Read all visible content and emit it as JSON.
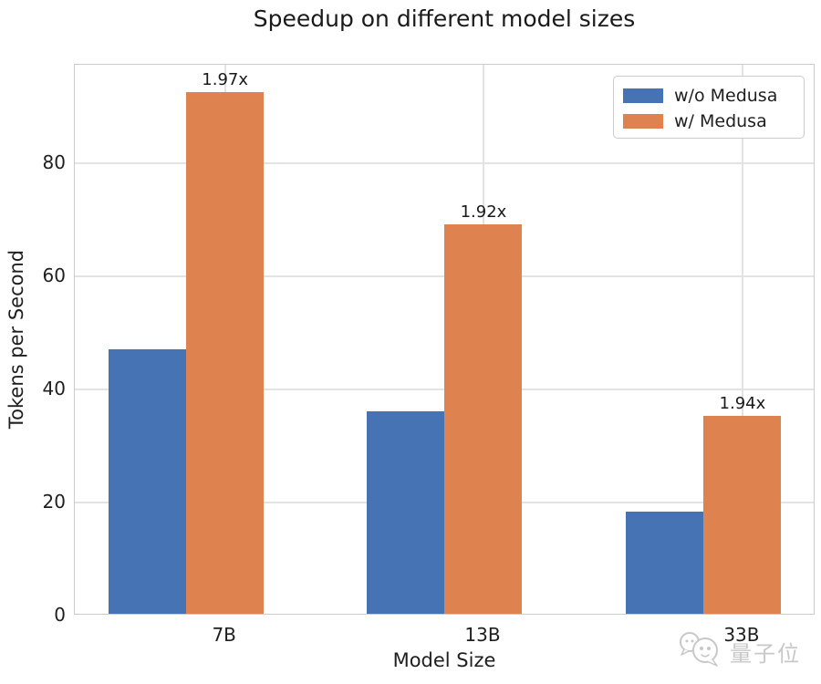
{
  "title": "Speedup on different model sizes",
  "colors": {
    "series_blue": "#4673B4",
    "series_orange": "#DE8350",
    "grid": "#E3E3E3",
    "spine": "#CCCCCC",
    "text": "#1F1F1F",
    "watermark": "#C6C6C6"
  },
  "chart_data": {
    "type": "bar",
    "title": "Speedup on different model sizes",
    "xlabel": "Model Size",
    "ylabel": "Tokens per Second",
    "categories": [
      "7B",
      "13B",
      "33B"
    ],
    "series": [
      {
        "name": "w/o Medusa",
        "color": "#4673B4",
        "values": [
          46.8,
          35.8,
          18.0
        ]
      },
      {
        "name": "w/ Medusa",
        "color": "#DE8350",
        "values": [
          92.2,
          68.8,
          35.0
        ]
      }
    ],
    "speedup_labels": [
      "1.97x",
      "1.92x",
      "1.94x"
    ],
    "yticks": [
      0,
      20,
      40,
      60,
      80
    ],
    "ylim": [
      0,
      97.4
    ],
    "grid": true,
    "legend_position": "upper right"
  },
  "legend": {
    "items": [
      {
        "label": "w/o Medusa",
        "color": "#4673B4"
      },
      {
        "label": "w/ Medusa",
        "color": "#DE8350"
      }
    ]
  },
  "watermark": {
    "text": "量子位"
  }
}
